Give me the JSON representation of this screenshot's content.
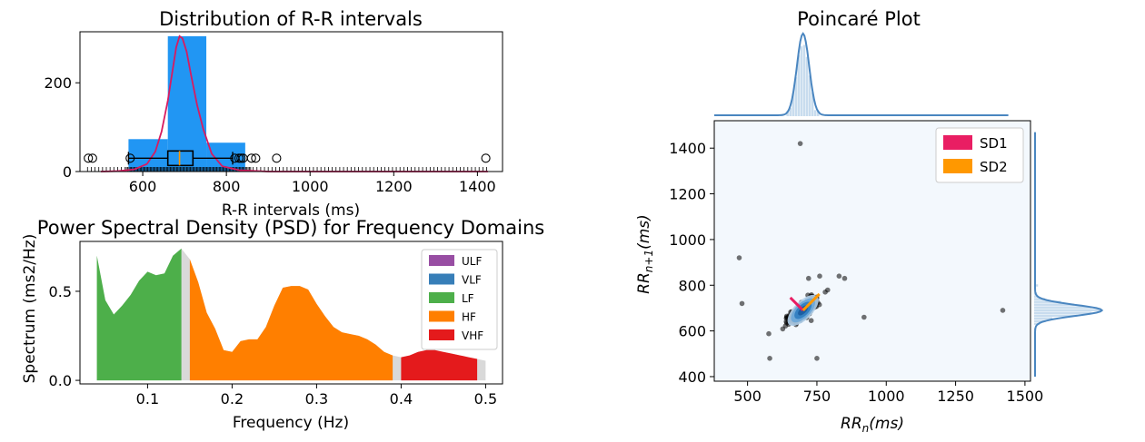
{
  "chart_data": [
    {
      "type": "histogram",
      "title": "Distribution of R-R intervals",
      "xlabel": "R-R intervals (ms)",
      "ylabel": "",
      "xlim": [
        450,
        1460
      ],
      "ylim": [
        0,
        315
      ],
      "xticks": [
        600,
        800,
        1000,
        1200,
        1400
      ],
      "yticks": [
        0,
        200
      ],
      "bars": [
        {
          "x0": 566,
          "x1": 660,
          "value": 73
        },
        {
          "x0": 660,
          "x1": 752,
          "value": 305
        },
        {
          "x0": 752,
          "x1": 845,
          "value": 65
        }
      ],
      "kde": [
        [
          500,
          0
        ],
        [
          540,
          1
        ],
        [
          580,
          5
        ],
        [
          610,
          17
        ],
        [
          630,
          45
        ],
        [
          645,
          90
        ],
        [
          660,
          160
        ],
        [
          670,
          220
        ],
        [
          680,
          280
        ],
        [
          688,
          305
        ],
        [
          695,
          300
        ],
        [
          705,
          270
        ],
        [
          715,
          220
        ],
        [
          730,
          150
        ],
        [
          745,
          95
        ],
        [
          765,
          40
        ],
        [
          790,
          12
        ],
        [
          830,
          3
        ],
        [
          900,
          0
        ],
        [
          1000,
          0
        ],
        [
          1100,
          0
        ],
        [
          1200,
          0
        ],
        [
          1300,
          0
        ],
        [
          1425,
          0
        ]
      ],
      "boxplot": {
        "whisker_low": 566,
        "q1": 660,
        "median": 688,
        "q3": 720,
        "whisker_high": 815,
        "y": 30
      },
      "outliers": [
        470,
        480,
        570,
        820,
        830,
        835,
        840,
        860,
        870,
        920,
        1420
      ]
    },
    {
      "type": "area",
      "title": "Power Spectral Density (PSD) for Frequency Domains",
      "xlabel": "Frequency (Hz)",
      "ylabel": "Spectrum (ms2/Hz)",
      "xlim": [
        0.02,
        0.52
      ],
      "ylim": [
        -0.02,
        0.78
      ],
      "xticks": [
        0.1,
        0.2,
        0.3,
        0.4,
        0.5
      ],
      "yticks": [
        0.0,
        0.5
      ],
      "legend": [
        "ULF",
        "VLF",
        "LF",
        "HF",
        "VHF"
      ],
      "bands": [
        {
          "name": "LF",
          "x0": 0.04,
          "x1": 0.15
        },
        {
          "name": "HF",
          "x0": 0.15,
          "x1": 0.4
        },
        {
          "name": "VHF",
          "x0": 0.4,
          "x1": 0.5
        }
      ],
      "spectrum": [
        [
          0.04,
          0.7
        ],
        [
          0.05,
          0.45
        ],
        [
          0.06,
          0.37
        ],
        [
          0.07,
          0.42
        ],
        [
          0.08,
          0.48
        ],
        [
          0.09,
          0.56
        ],
        [
          0.1,
          0.61
        ],
        [
          0.11,
          0.59
        ],
        [
          0.12,
          0.6
        ],
        [
          0.13,
          0.7
        ],
        [
          0.14,
          0.74
        ],
        [
          0.15,
          0.68
        ],
        [
          0.16,
          0.55
        ],
        [
          0.17,
          0.38
        ],
        [
          0.18,
          0.29
        ],
        [
          0.19,
          0.17
        ],
        [
          0.2,
          0.16
        ],
        [
          0.21,
          0.22
        ],
        [
          0.22,
          0.23
        ],
        [
          0.23,
          0.23
        ],
        [
          0.24,
          0.3
        ],
        [
          0.25,
          0.42
        ],
        [
          0.26,
          0.52
        ],
        [
          0.27,
          0.53
        ],
        [
          0.28,
          0.53
        ],
        [
          0.29,
          0.51
        ],
        [
          0.3,
          0.43
        ],
        [
          0.31,
          0.36
        ],
        [
          0.32,
          0.3
        ],
        [
          0.33,
          0.27
        ],
        [
          0.34,
          0.26
        ],
        [
          0.35,
          0.25
        ],
        [
          0.36,
          0.23
        ],
        [
          0.37,
          0.2
        ],
        [
          0.38,
          0.16
        ],
        [
          0.39,
          0.14
        ],
        [
          0.4,
          0.13
        ],
        [
          0.41,
          0.14
        ],
        [
          0.42,
          0.16
        ],
        [
          0.43,
          0.17
        ],
        [
          0.44,
          0.17
        ],
        [
          0.45,
          0.16
        ],
        [
          0.46,
          0.15
        ],
        [
          0.47,
          0.14
        ],
        [
          0.48,
          0.13
        ],
        [
          0.49,
          0.12
        ],
        [
          0.5,
          0.11
        ]
      ],
      "gaps": [
        0.14,
        0.39,
        0.49
      ]
    },
    {
      "type": "scatter",
      "title": "Poincaré Plot",
      "xlabel": "RR_n(ms)",
      "ylabel": "RR_n+1(ms)",
      "xlim": [
        380,
        1520
      ],
      "ylim": [
        380,
        1520
      ],
      "xticks": [
        500,
        750,
        1000,
        1250,
        1500
      ],
      "yticks": [
        400,
        600,
        800,
        1000,
        1200,
        1400
      ],
      "legend": [
        "SD1",
        "SD2"
      ],
      "colors": {
        "SD1": "#e91e63",
        "SD2": "#ff9800",
        "points": "#000000",
        "kde": "#4a86c0",
        "hist": "#c8dcee",
        "bg": "#f3f8fd"
      },
      "outliers": [
        [
          690,
          1420
        ],
        [
          470,
          920
        ],
        [
          480,
          720
        ],
        [
          580,
          480
        ],
        [
          750,
          480
        ],
        [
          920,
          660
        ],
        [
          1420,
          690
        ],
        [
          830,
          840
        ],
        [
          850,
          830
        ],
        [
          720,
          830
        ],
        [
          760,
          840
        ],
        [
          780,
          770
        ]
      ],
      "center": [
        700,
        690
      ]
    }
  ]
}
